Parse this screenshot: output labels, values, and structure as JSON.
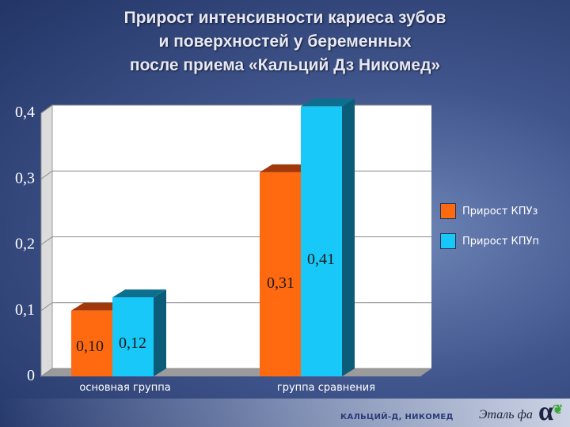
{
  "chart_data": {
    "type": "bar",
    "title_lines": [
      "Прирост интенсивности кариеса зубов",
      "и поверхностей у беременных",
      "после приема «Кальций Дз Никомед»"
    ],
    "categories": [
      "основная группа",
      "группа сравнения"
    ],
    "series": [
      {
        "name": "Прирост КПУз",
        "values": [
          0.1,
          0.31
        ],
        "labels": [
          "0,10",
          "0,31"
        ],
        "color": "#ff6a10"
      },
      {
        "name": "Прирост КПУп",
        "values": [
          0.12,
          0.41
        ],
        "labels": [
          "0,12",
          "0,41"
        ],
        "color": "#18c8f8"
      }
    ],
    "ylim": [
      0,
      0.4
    ],
    "yticks": [
      0,
      0.1,
      0.2,
      0.3,
      0.4
    ],
    "ytick_labels": [
      "0",
      "0,1",
      "0,2",
      "0,3",
      "0,4"
    ],
    "grid": true,
    "legend_position": "right"
  },
  "footer": {
    "brand_text": "КАЛЬЦИЙ-Д, НИКОМЕД",
    "logo_text": "Эталь фа",
    "logo_mark": "α"
  },
  "colors": {
    "wall": "#ffffff",
    "bar_top_orange": "#a0380a",
    "bar_side_orange": "#8a2f08",
    "bar_top_blue": "#0c6f90",
    "bar_side_blue": "#0a5c78"
  }
}
